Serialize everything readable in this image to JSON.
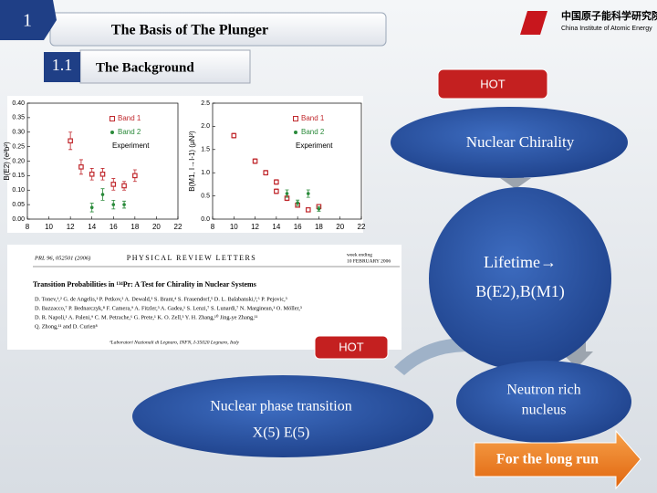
{
  "header": {
    "section_number": "1",
    "title": "The Basis of The Plunger",
    "subsection_number": "1.1",
    "subtitle": "The Background",
    "logo_text": "中国原子能科学研究院",
    "logo_subtext": "China Institute of Atomic Energy"
  },
  "plots": [
    {
      "type": "scatter",
      "ylabel": "B(E2) (e²b²)",
      "xlim": [
        8,
        22
      ],
      "xticks": [
        8,
        10,
        12,
        14,
        16,
        18,
        20,
        22
      ],
      "ylim": [
        0,
        0.4
      ],
      "yticks": [
        {
          "value": 0,
          "label": "0.00"
        },
        {
          "value": 0.05,
          "label": "0.05"
        },
        {
          "value": 0.1,
          "label": "0.10"
        },
        {
          "value": 0.15,
          "label": "0.15"
        },
        {
          "value": 0.2,
          "label": "0.20"
        },
        {
          "value": 0.25,
          "label": "0.25"
        },
        {
          "value": 0.3,
          "label": "0.30"
        },
        {
          "value": 0.35,
          "label": "0.35"
        },
        {
          "value": 0.4,
          "label": "0.40"
        }
      ],
      "legend_title": "Experiment",
      "series": [
        {
          "name": "Band 1",
          "color": "#c0282d",
          "marker": "square",
          "x": [
            12,
            13,
            14,
            15,
            16,
            17,
            18
          ],
          "values": [
            0.27,
            0.18,
            0.155,
            0.155,
            0.12,
            0.115,
            0.15
          ],
          "errors": [
            0.03,
            0.025,
            0.02,
            0.02,
            0.02,
            0.015,
            0.02
          ]
        },
        {
          "name": "Band 2",
          "color": "#2a8a3a",
          "marker": "circle",
          "x": [
            14,
            15,
            16,
            17
          ],
          "values": [
            0.04,
            0.085,
            0.05,
            0.05
          ],
          "errors": [
            0.015,
            0.02,
            0.015,
            0.012
          ]
        }
      ]
    },
    {
      "type": "scatter",
      "ylabel": "B(M1, I→I-1) (μN²)",
      "xlim": [
        8,
        22
      ],
      "xticks": [
        8,
        10,
        12,
        14,
        16,
        18,
        20,
        22
      ],
      "ylim": [
        0,
        2.5
      ],
      "yticks": [
        {
          "value": 0,
          "label": "0.0"
        },
        {
          "value": 0.5,
          "label": "0.5"
        },
        {
          "value": 1,
          "label": "1.0"
        },
        {
          "value": 1.5,
          "label": "1.5"
        },
        {
          "value": 2,
          "label": "2.0"
        },
        {
          "value": 2.5,
          "label": "2.5"
        }
      ],
      "legend_title": "Experiment",
      "series": [
        {
          "name": "Band 1",
          "color": "#c0282d",
          "marker": "square",
          "x": [
            10,
            12,
            13,
            14,
            14,
            15,
            16,
            17,
            18
          ],
          "values": [
            1.8,
            1.25,
            1.0,
            0.8,
            0.6,
            0.45,
            0.3,
            0.2,
            0.27
          ],
          "errors": [
            0.05,
            0.05,
            0.05,
            0.05,
            0.05,
            0.05,
            0.04,
            0.03,
            0.03
          ]
        },
        {
          "name": "Band 2",
          "color": "#2a8a3a",
          "marker": "circle",
          "x": [
            15,
            16,
            17,
            18
          ],
          "values": [
            0.55,
            0.35,
            0.55,
            0.22
          ],
          "errors": [
            0.08,
            0.06,
            0.08,
            0.05
          ]
        }
      ]
    }
  ],
  "paper": {
    "citation": "PRL 96, 052501 (2006)",
    "journal": "PHYSICAL REVIEW LETTERS",
    "date_lines": [
      "week ending",
      "10 FEBRUARY 2006"
    ],
    "title": "Transition Probabilities in ¹³⁴Pr: A Test for Chirality in Nuclear Systems",
    "authors": [
      "D. Tonev,¹,² G. de Angelis,¹ P. Petkov,² A. Dewald,³ S. Brant,⁴ S. Frauendorf,⁵ D. L. Balabanski,²,⁶ P. Pejovic,³",
      "D. Bazzacco,⁷ P. Bednarczyk,⁸ F. Camera,⁹ A. Fitzler,³ A. Gadea,¹ S. Lenzi,⁷ S. Lunardi,⁷ N. Marginean,¹ O. Möller,³",
      "D. R. Napoli,¹ A. Paleni,⁹ C. M. Petrache,⁶ G. Prete,¹ K. O. Zell,³ Y. H. Zhang,¹⁰ Jing-ye Zhang,¹¹",
      "Q. Zhong,¹¹ and D. Curien⁸"
    ],
    "affiliation": "¹Laboratori Nazionali di Legnaro, INFN, I-35020 Legnaro, Italy"
  },
  "diagram": {
    "hot_top": "HOT",
    "chirality": "Nuclear Chirality",
    "lifetime_lines": [
      "Lifetime→",
      "B(E2),B(M1)"
    ],
    "hot_mid": "HOT",
    "phase_lines": [
      "Nuclear phase transition",
      "X(5) E(5)"
    ],
    "neutron_lines": [
      "Neutron rich",
      "nucleus"
    ],
    "long_run": "For the long run"
  }
}
